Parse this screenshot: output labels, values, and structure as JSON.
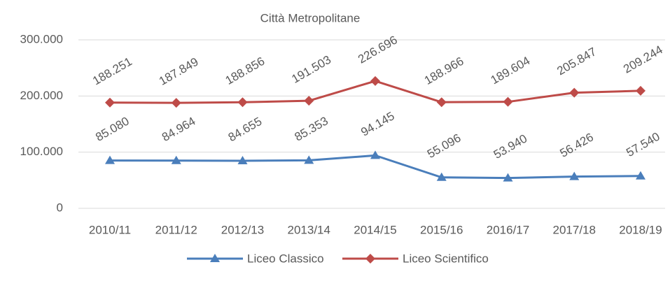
{
  "chart_data": {
    "type": "line",
    "title": "Città Metropolitane",
    "categories": [
      "2010/11",
      "2011/12",
      "2012/13",
      "2013/14",
      "2014/15",
      "2015/16",
      "2016/17",
      "2017/18",
      "2018/19"
    ],
    "series": [
      {
        "name": "Liceo Classico",
        "color": "#4a7ebb",
        "marker": "triangle",
        "values": [
          85080,
          84964,
          84655,
          85353,
          94145,
          55096,
          53940,
          56426,
          57540
        ],
        "value_labels": [
          "85.080",
          "84.964",
          "84.655",
          "85.353",
          "94.145",
          "55.096",
          "53.940",
          "56.426",
          "57.540"
        ]
      },
      {
        "name": "Liceo Scientifico",
        "color": "#be4b48",
        "marker": "diamond",
        "values": [
          188251,
          187849,
          188856,
          191503,
          226696,
          188966,
          189604,
          205847,
          209244
        ],
        "value_labels": [
          "188.251",
          "187.849",
          "188.856",
          "191.503",
          "226.696",
          "188.966",
          "189.604",
          "205.847",
          "209.244"
        ]
      }
    ],
    "ylim": [
      0,
      300000
    ],
    "yticks": [
      0,
      {
        "value": 100000,
        "label": "100.000"
      },
      {
        "value": 200000,
        "label": "200.000"
      },
      {
        "value": 300000,
        "label": "300.000"
      }
    ],
    "grid": true,
    "legend": "bottom"
  }
}
